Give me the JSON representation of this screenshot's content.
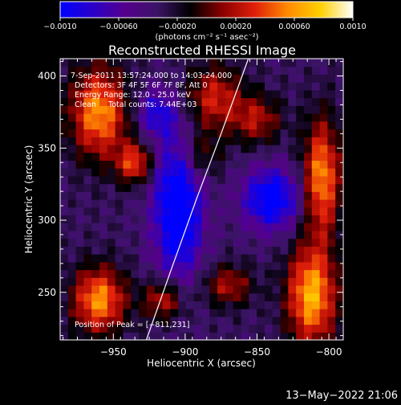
{
  "chart_data": {
    "type": "heatmap",
    "title": "Reconstructed RHESSI Image",
    "xlabel": "Heliocentric X (arcsec)",
    "ylabel": "Heliocentric Y (arcsec)",
    "xlim": [
      -987,
      -790
    ],
    "ylim": [
      217,
      412
    ],
    "x_ticks": [
      -950,
      -900,
      -850,
      -800
    ],
    "y_ticks": [
      250,
      300,
      350,
      400
    ],
    "x_tick_labels": [
      "−950",
      "−900",
      "−850",
      "−800"
    ],
    "y_tick_labels": [
      "250",
      "300",
      "350",
      "400"
    ],
    "colorbar": {
      "range": [
        -0.001,
        0.001
      ],
      "ticks": [
        -0.001,
        -0.0006,
        -0.0002,
        0.0002,
        0.0006,
        0.001
      ],
      "tick_labels": [
        "−0.0010",
        "−0.00060",
        "−0.00020",
        "0.00020",
        "0.00060",
        "0.0010"
      ],
      "units": "(photons cm⁻² s⁻¹ asec⁻²)",
      "colormap": [
        "#0000ff",
        "#2a00c8",
        "#55008c",
        "#3b1466",
        "#000000",
        "#8c0000",
        "#e0200a",
        "#ff8c00",
        "#ffd000",
        "#ffffff"
      ]
    },
    "regions": [
      {
        "x": -960,
        "y": 375,
        "sx": 14,
        "sy": 22,
        "amp": 0.0009
      },
      {
        "x": -935,
        "y": 340,
        "sx": 9,
        "sy": 10,
        "amp": 0.0007
      },
      {
        "x": -960,
        "y": 245,
        "sx": 13,
        "sy": 16,
        "amp": 0.0009
      },
      {
        "x": -915,
        "y": 245,
        "sx": 10,
        "sy": 10,
        "amp": 0.0006
      },
      {
        "x": -880,
        "y": 385,
        "sx": 14,
        "sy": 16,
        "amp": 0.0006
      },
      {
        "x": -850,
        "y": 370,
        "sx": 12,
        "sy": 12,
        "amp": 0.0005
      },
      {
        "x": -805,
        "y": 330,
        "sx": 9,
        "sy": 28,
        "amp": 0.0009
      },
      {
        "x": -812,
        "y": 248,
        "sx": 12,
        "sy": 24,
        "amp": 0.001
      },
      {
        "x": -870,
        "y": 255,
        "sx": 12,
        "sy": 10,
        "amp": 0.0005
      },
      {
        "x": -890,
        "y": 345,
        "sx": 10,
        "sy": 12,
        "amp": 0.0004
      },
      {
        "x": -905,
        "y": 310,
        "sx": 12,
        "sy": 35,
        "amp": -0.0009
      },
      {
        "x": -840,
        "y": 315,
        "sx": 14,
        "sy": 15,
        "amp": -0.0008
      },
      {
        "x": -920,
        "y": 375,
        "sx": 10,
        "sy": 12,
        "amp": -0.0005
      }
    ],
    "limb_curve": [
      [
        -927,
        217
      ],
      [
        -910,
        265
      ],
      [
        -892,
        315
      ],
      [
        -875,
        360
      ],
      [
        -856,
        412
      ]
    ],
    "peak": [
      -811,
      231
    ],
    "annotations": {
      "time_range": "7-Sep-2011 13:57:24.000 to 14:03:24.000",
      "detectors": "Detectors: 3F 4F 5F 6F 7F 8F, Att 0",
      "energy": "Energy Range: 12.0 - 25.0 keV",
      "clean": "Clean     Total counts: 7.44E+03",
      "peak_text": "Position of Peak = [−811,231]"
    },
    "timestamp": "13−May−2022 21:06"
  }
}
